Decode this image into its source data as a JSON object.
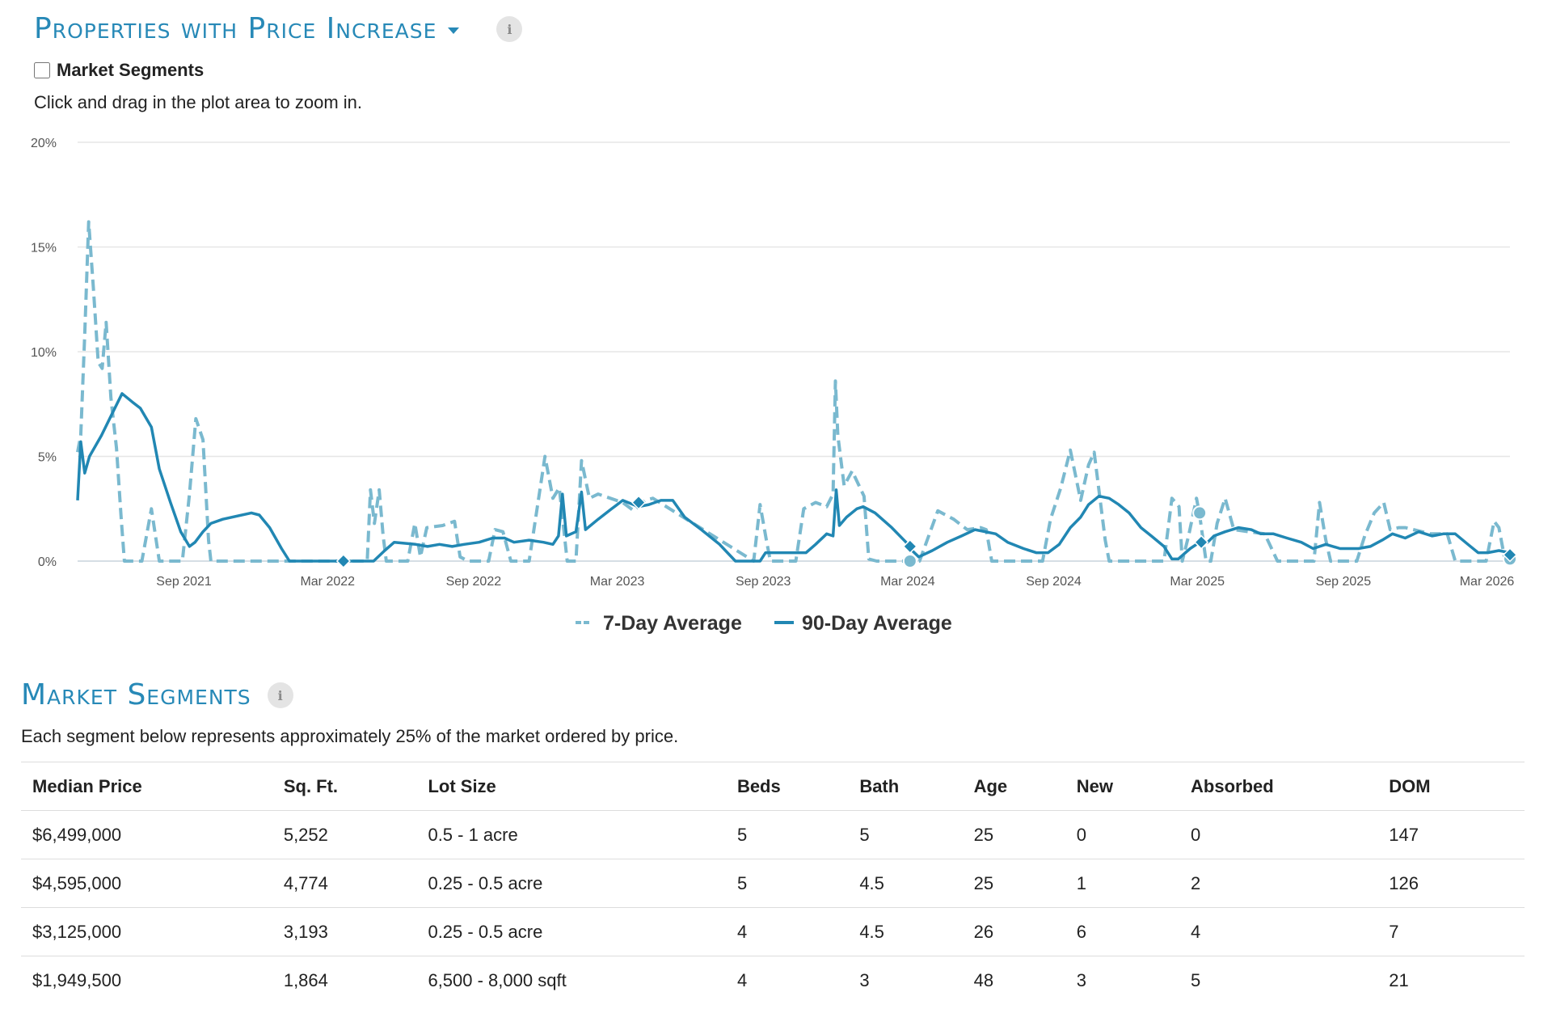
{
  "header": {
    "title": "Properties with Price Increase"
  },
  "segments_toggle": {
    "label": "Market Segments",
    "checked": false
  },
  "hint": "Click and drag in the plot area to zoom in.",
  "colors": {
    "accent": "#2789b7",
    "series7": "#7ab9cf",
    "series90": "#2187b3",
    "grid": "#e6e6e6"
  },
  "chart_data": {
    "type": "line",
    "x_unit": "date",
    "y_unit": "%",
    "ylim": [
      0,
      20
    ],
    "xlim": [
      "2021-04-20",
      "2026-03-30"
    ],
    "y_ticks": [
      "20%",
      "15%",
      "10%",
      "5%",
      "0%"
    ],
    "x_ticks": [
      "Sep 2021",
      "Mar 2022",
      "Sep 2022",
      "Mar 2023",
      "Sep 2023",
      "Mar 2024",
      "Sep 2024",
      "Mar 2025",
      "Sep 2025",
      "Mar 2026"
    ],
    "grid": true,
    "legend_position": "bottom-center",
    "series": [
      {
        "name": "7-Day Average",
        "style": "dashed",
        "points": [
          [
            "2021-04-20",
            5.2
          ],
          [
            "2021-04-24",
            6.0
          ],
          [
            "2021-04-29",
            10.8
          ],
          [
            "2021-05-04",
            16.2
          ],
          [
            "2021-05-10",
            13.0
          ],
          [
            "2021-05-16",
            9.5
          ],
          [
            "2021-05-21",
            9.2
          ],
          [
            "2021-05-26",
            11.4
          ],
          [
            "2021-06-01",
            7.8
          ],
          [
            "2021-06-08",
            5.4
          ],
          [
            "2021-06-14",
            2.0
          ],
          [
            "2021-06-18",
            0.0
          ],
          [
            "2021-07-10",
            0.0
          ],
          [
            "2021-07-22",
            2.5
          ],
          [
            "2021-08-01",
            0.0
          ],
          [
            "2021-08-10",
            0.0
          ],
          [
            "2021-08-18",
            0.0
          ],
          [
            "2021-08-30",
            0.0
          ],
          [
            "2021-09-08",
            3.2
          ],
          [
            "2021-09-16",
            6.8
          ],
          [
            "2021-09-25",
            5.8
          ],
          [
            "2021-10-02",
            1.0
          ],
          [
            "2021-10-05",
            0.0
          ],
          [
            "2022-04-20",
            0.0
          ],
          [
            "2022-04-24",
            3.4
          ],
          [
            "2022-04-29",
            1.8
          ],
          [
            "2022-05-05",
            3.4
          ],
          [
            "2022-05-10",
            1.2
          ],
          [
            "2022-05-14",
            0.0
          ],
          [
            "2022-06-10",
            0.0
          ],
          [
            "2022-06-19",
            1.8
          ],
          [
            "2022-06-26",
            0.2
          ],
          [
            "2022-07-04",
            1.6
          ],
          [
            "2022-07-24",
            1.7
          ],
          [
            "2022-08-08",
            1.9
          ],
          [
            "2022-08-15",
            0.2
          ],
          [
            "2022-08-25",
            0.0
          ],
          [
            "2022-09-20",
            0.0
          ],
          [
            "2022-09-28",
            1.5
          ],
          [
            "2022-10-08",
            1.4
          ],
          [
            "2022-10-18",
            0.0
          ],
          [
            "2022-11-10",
            0.0
          ],
          [
            "2022-11-20",
            2.5
          ],
          [
            "2022-11-30",
            5.0
          ],
          [
            "2022-12-10",
            3.0
          ],
          [
            "2022-12-18",
            3.5
          ],
          [
            "2022-12-28",
            0.0
          ],
          [
            "2023-01-08",
            0.0
          ],
          [
            "2023-01-15",
            4.8
          ],
          [
            "2023-01-25",
            3.0
          ],
          [
            "2023-02-05",
            3.2
          ],
          [
            "2023-02-28",
            2.9
          ],
          [
            "2023-03-08",
            2.8
          ],
          [
            "2023-03-22",
            2.4
          ],
          [
            "2023-04-05",
            2.9
          ],
          [
            "2023-04-15",
            3.0
          ],
          [
            "2023-08-20",
            0.0
          ],
          [
            "2023-08-28",
            2.7
          ],
          [
            "2023-09-05",
            1.0
          ],
          [
            "2023-09-10",
            0.0
          ],
          [
            "2023-10-12",
            0.0
          ],
          [
            "2023-10-22",
            2.5
          ],
          [
            "2023-11-06",
            2.8
          ],
          [
            "2023-11-20",
            2.6
          ],
          [
            "2023-11-28",
            3.2
          ],
          [
            "2023-12-01",
            8.6
          ],
          [
            "2023-12-04",
            6.0
          ],
          [
            "2023-12-12",
            3.6
          ],
          [
            "2023-12-22",
            4.3
          ],
          [
            "2024-01-06",
            3.1
          ],
          [
            "2024-01-12",
            0.1
          ],
          [
            "2024-01-22",
            0.0
          ],
          [
            "2024-02-15",
            0.0
          ],
          [
            "2024-03-01",
            0.0
          ],
          [
            "2024-03-10",
            0.0
          ],
          [
            "2024-03-16",
            0.0
          ],
          [
            "2024-04-08",
            2.4
          ],
          [
            "2024-04-28",
            2.0
          ],
          [
            "2024-05-15",
            1.5
          ],
          [
            "2024-06-01",
            1.6
          ],
          [
            "2024-06-08",
            1.5
          ],
          [
            "2024-06-15",
            0.0
          ],
          [
            "2024-08-18",
            0.0
          ],
          [
            "2024-08-28",
            2.0
          ],
          [
            "2024-09-10",
            3.5
          ],
          [
            "2024-09-22",
            5.3
          ],
          [
            "2024-10-05",
            2.9
          ],
          [
            "2024-10-15",
            4.6
          ],
          [
            "2024-10-22",
            5.2
          ],
          [
            "2024-11-05",
            1.0
          ],
          [
            "2024-11-10",
            0.0
          ],
          [
            "2025-01-18",
            0.0
          ],
          [
            "2025-01-28",
            3.0
          ],
          [
            "2025-02-06",
            2.6
          ],
          [
            "2025-02-10",
            0.0
          ],
          [
            "2025-02-18",
            1.2
          ],
          [
            "2025-02-28",
            3.0
          ],
          [
            "2025-03-04",
            2.2
          ],
          [
            "2025-03-12",
            0.0
          ],
          [
            "2025-03-18",
            0.0
          ],
          [
            "2025-03-26",
            1.8
          ],
          [
            "2025-04-05",
            3.0
          ],
          [
            "2025-04-16",
            1.5
          ],
          [
            "2025-05-05",
            1.4
          ],
          [
            "2025-05-25",
            1.3
          ],
          [
            "2025-06-10",
            0.0
          ],
          [
            "2025-07-26",
            0.0
          ],
          [
            "2025-08-02",
            2.8
          ],
          [
            "2025-08-10",
            1.0
          ],
          [
            "2025-08-16",
            0.0
          ],
          [
            "2025-09-18",
            0.0
          ],
          [
            "2025-09-28",
            1.2
          ],
          [
            "2025-10-10",
            2.3
          ],
          [
            "2025-10-22",
            2.8
          ],
          [
            "2025-10-30",
            1.5
          ],
          [
            "2025-11-10",
            1.6
          ],
          [
            "2025-11-18",
            1.6
          ],
          [
            "2025-12-20",
            1.3
          ],
          [
            "2026-01-10",
            1.3
          ],
          [
            "2026-01-20",
            0.0
          ],
          [
            "2026-02-28",
            0.0
          ],
          [
            "2026-03-10",
            1.9
          ],
          [
            "2026-03-16",
            1.6
          ],
          [
            "2026-03-23",
            0.2
          ],
          [
            "2026-03-30",
            0.1
          ]
        ],
        "markers": [
          [
            "2024-03-04",
            0.0
          ],
          [
            "2025-03-04",
            2.3
          ],
          [
            "2026-03-30",
            0.1
          ]
        ]
      },
      {
        "name": "90-Day Average",
        "style": "solid",
        "points": [
          [
            "2021-04-20",
            2.9
          ],
          [
            "2021-04-24",
            5.7
          ],
          [
            "2021-04-29",
            4.2
          ],
          [
            "2021-05-05",
            5.0
          ],
          [
            "2021-05-20",
            6.0
          ],
          [
            "2021-06-02",
            7.0
          ],
          [
            "2021-06-15",
            8.0
          ],
          [
            "2021-06-28",
            7.6
          ],
          [
            "2021-07-08",
            7.3
          ],
          [
            "2021-07-22",
            6.4
          ],
          [
            "2021-08-01",
            4.4
          ],
          [
            "2021-08-15",
            2.8
          ],
          [
            "2021-08-28",
            1.4
          ],
          [
            "2021-09-08",
            0.7
          ],
          [
            "2021-09-15",
            0.9
          ],
          [
            "2021-09-25",
            1.4
          ],
          [
            "2021-10-05",
            1.8
          ],
          [
            "2021-10-20",
            2.0
          ],
          [
            "2021-11-25",
            2.3
          ],
          [
            "2021-12-05",
            2.2
          ],
          [
            "2021-12-18",
            1.6
          ],
          [
            "2022-01-02",
            0.6
          ],
          [
            "2022-01-12",
            0.0
          ],
          [
            "2022-04-18",
            0.0
          ],
          [
            "2022-04-28",
            0.0
          ],
          [
            "2022-05-12",
            0.5
          ],
          [
            "2022-05-24",
            0.9
          ],
          [
            "2022-06-20",
            0.8
          ],
          [
            "2022-07-05",
            0.7
          ],
          [
            "2022-07-20",
            0.8
          ],
          [
            "2022-08-05",
            0.7
          ],
          [
            "2022-08-20",
            0.8
          ],
          [
            "2022-09-08",
            0.9
          ],
          [
            "2022-09-25",
            1.1
          ],
          [
            "2022-10-10",
            1.1
          ],
          [
            "2022-10-22",
            0.9
          ],
          [
            "2022-11-10",
            1.0
          ],
          [
            "2022-11-28",
            0.9
          ],
          [
            "2022-12-10",
            0.8
          ],
          [
            "2022-12-17",
            1.2
          ],
          [
            "2022-12-22",
            3.2
          ],
          [
            "2022-12-27",
            1.2
          ],
          [
            "2023-01-08",
            1.4
          ],
          [
            "2023-01-15",
            3.3
          ],
          [
            "2023-01-20",
            1.5
          ],
          [
            "2023-02-05",
            2.0
          ],
          [
            "2023-02-22",
            2.5
          ],
          [
            "2023-03-08",
            2.9
          ],
          [
            "2023-03-28",
            2.6
          ],
          [
            "2023-04-10",
            2.7
          ],
          [
            "2023-04-25",
            2.9
          ],
          [
            "2023-05-10",
            2.9
          ],
          [
            "2023-05-25",
            2.1
          ],
          [
            "2023-06-15",
            1.5
          ],
          [
            "2023-07-08",
            0.8
          ],
          [
            "2023-07-28",
            0.0
          ],
          [
            "2023-08-18",
            0.0
          ],
          [
            "2023-08-28",
            0.0
          ],
          [
            "2023-09-04",
            0.4
          ],
          [
            "2023-09-22",
            0.4
          ],
          [
            "2023-10-10",
            0.4
          ],
          [
            "2023-10-25",
            0.4
          ],
          [
            "2023-11-06",
            0.8
          ],
          [
            "2023-11-20",
            1.3
          ],
          [
            "2023-11-28",
            1.2
          ],
          [
            "2023-12-02",
            3.4
          ],
          [
            "2023-12-06",
            1.7
          ],
          [
            "2023-12-15",
            2.1
          ],
          [
            "2023-12-28",
            2.5
          ],
          [
            "2024-01-05",
            2.6
          ],
          [
            "2024-01-20",
            2.3
          ],
          [
            "2024-02-10",
            1.6
          ],
          [
            "2024-02-28",
            0.9
          ],
          [
            "2024-03-04",
            0.6
          ],
          [
            "2024-03-15",
            0.2
          ],
          [
            "2024-04-01",
            0.5
          ],
          [
            "2024-04-20",
            0.9
          ],
          [
            "2024-05-08",
            1.2
          ],
          [
            "2024-05-25",
            1.5
          ],
          [
            "2024-06-20",
            1.3
          ],
          [
            "2024-07-05",
            0.9
          ],
          [
            "2024-07-25",
            0.6
          ],
          [
            "2024-08-10",
            0.4
          ],
          [
            "2024-08-25",
            0.4
          ],
          [
            "2024-09-08",
            0.8
          ],
          [
            "2024-09-22",
            1.6
          ],
          [
            "2024-10-05",
            2.1
          ],
          [
            "2024-10-15",
            2.7
          ],
          [
            "2024-10-28",
            3.1
          ],
          [
            "2024-11-10",
            3.0
          ],
          [
            "2024-11-22",
            2.7
          ],
          [
            "2024-12-05",
            2.3
          ],
          [
            "2024-12-20",
            1.6
          ],
          [
            "2025-01-02",
            1.2
          ],
          [
            "2025-01-18",
            0.7
          ],
          [
            "2025-01-28",
            0.1
          ],
          [
            "2025-02-05",
            0.1
          ],
          [
            "2025-02-20",
            0.6
          ],
          [
            "2025-03-04",
            0.9
          ],
          [
            "2025-03-14",
            0.9
          ],
          [
            "2025-03-22",
            1.2
          ],
          [
            "2025-04-05",
            1.4
          ],
          [
            "2025-04-22",
            1.6
          ],
          [
            "2025-05-08",
            1.5
          ],
          [
            "2025-05-20",
            1.3
          ],
          [
            "2025-06-05",
            1.3
          ],
          [
            "2025-06-22",
            1.1
          ],
          [
            "2025-07-10",
            0.9
          ],
          [
            "2025-07-25",
            0.6
          ],
          [
            "2025-08-10",
            0.8
          ],
          [
            "2025-08-28",
            0.6
          ],
          [
            "2025-09-20",
            0.6
          ],
          [
            "2025-10-05",
            0.7
          ],
          [
            "2025-10-20",
            1.0
          ],
          [
            "2025-11-02",
            1.3
          ],
          [
            "2025-11-18",
            1.1
          ],
          [
            "2025-12-05",
            1.4
          ],
          [
            "2025-12-22",
            1.2
          ],
          [
            "2026-01-05",
            1.3
          ],
          [
            "2026-01-20",
            1.3
          ],
          [
            "2026-02-05",
            0.8
          ],
          [
            "2026-02-18",
            0.4
          ],
          [
            "2026-03-02",
            0.4
          ],
          [
            "2026-03-16",
            0.5
          ],
          [
            "2026-03-30",
            0.4
          ]
        ],
        "markers": [
          [
            "2022-03-21",
            0.0
          ],
          [
            "2023-03-28",
            2.8
          ],
          [
            "2024-03-04",
            0.7
          ],
          [
            "2025-03-06",
            0.9
          ],
          [
            "2026-03-30",
            0.3
          ]
        ]
      }
    ]
  },
  "segments": {
    "title": "Market Segments",
    "subtitle": "Each segment below represents approximately 25% of the market ordered by price.",
    "columns": [
      "Median Price",
      "Sq. Ft.",
      "Lot Size",
      "Beds",
      "Bath",
      "Age",
      "New",
      "Absorbed",
      "DOM"
    ],
    "rows": [
      [
        "$6,499,000",
        "5,252",
        "0.5 - 1 acre",
        "5",
        "5",
        "25",
        "0",
        "0",
        "147"
      ],
      [
        "$4,595,000",
        "4,774",
        "0.25 - 0.5 acre",
        "5",
        "4.5",
        "25",
        "1",
        "2",
        "126"
      ],
      [
        "$3,125,000",
        "3,193",
        "0.25 - 0.5 acre",
        "4",
        "4.5",
        "26",
        "6",
        "4",
        "7"
      ],
      [
        "$1,949,500",
        "1,864",
        "6,500 - 8,000 sqft",
        "4",
        "3",
        "48",
        "3",
        "5",
        "21"
      ]
    ]
  }
}
